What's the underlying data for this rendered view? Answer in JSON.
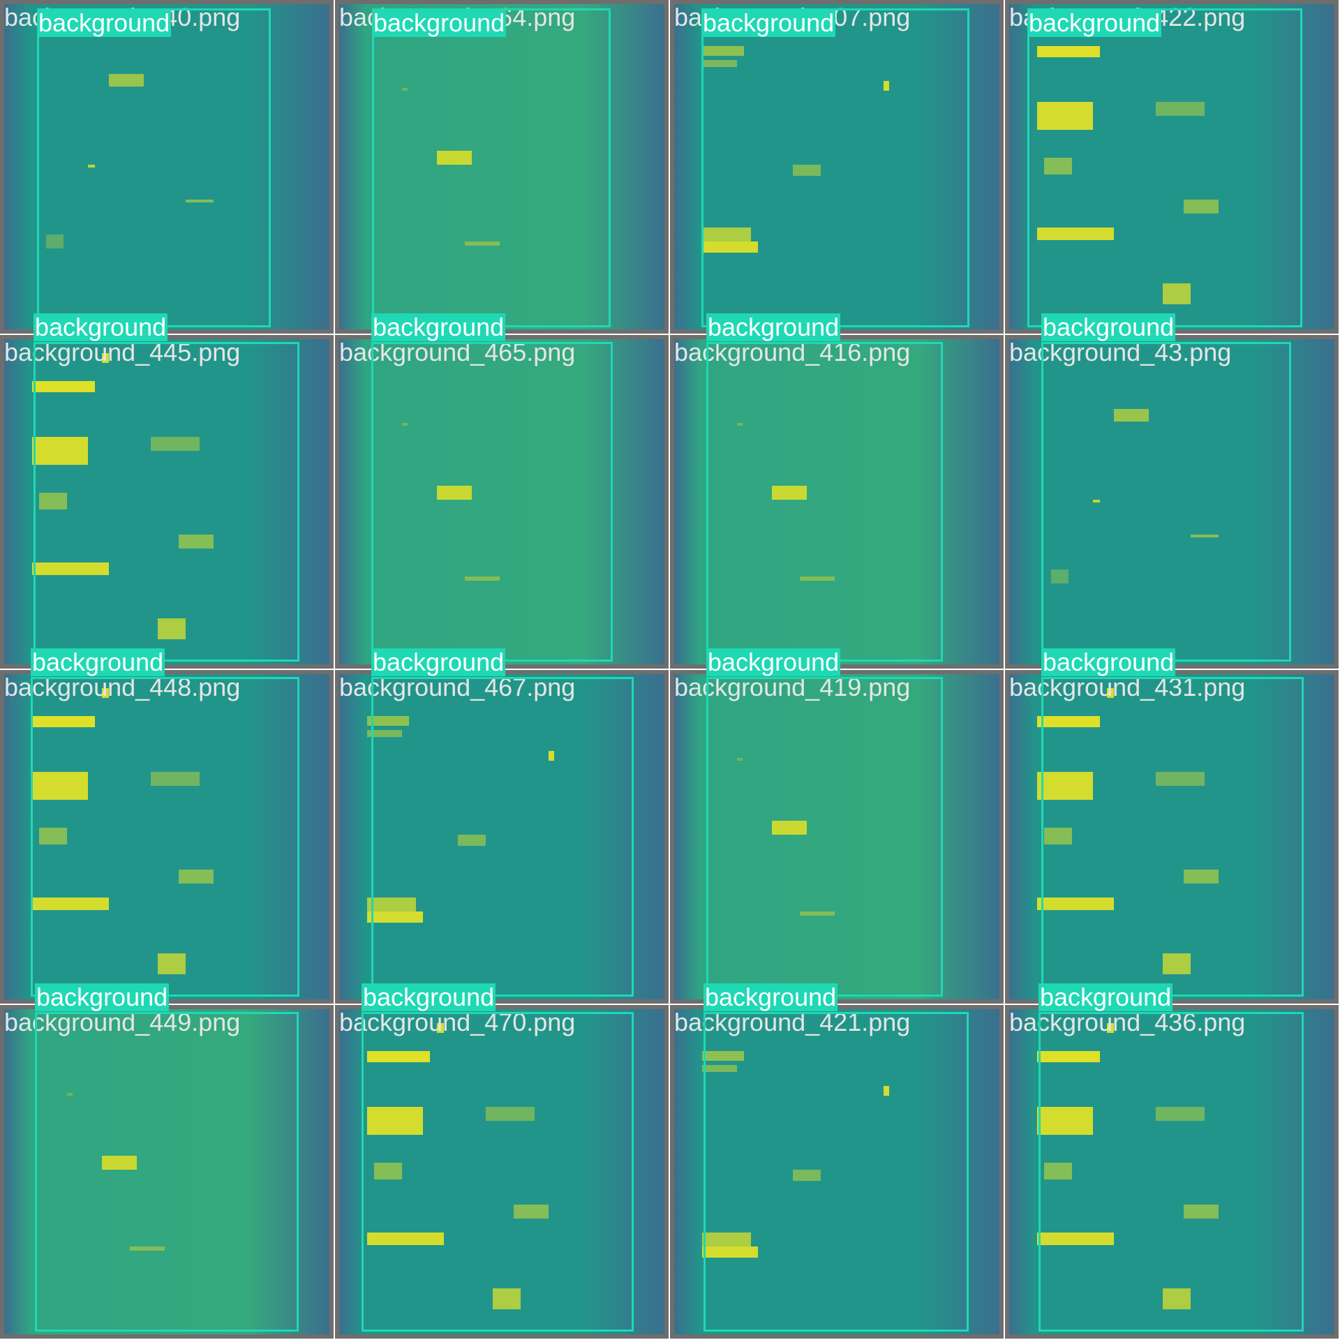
{
  "class_label": "background",
  "colors": {
    "box": "#1fd8b4",
    "tile_border": "#6e6e6e",
    "spectrogram_low": "#3b6f8e",
    "spectrogram_mid": "#22958a",
    "spectrogram_high": "#e8e523"
  },
  "tiles": [
    {
      "filename": "background_440.png",
      "variant": "a"
    },
    {
      "filename": "background_464.png",
      "variant": "b"
    },
    {
      "filename": "background_407.png",
      "variant": "c"
    },
    {
      "filename": "background_422.png",
      "variant": "d"
    },
    {
      "filename": "background_445.png",
      "variant": "d"
    },
    {
      "filename": "background_465.png",
      "variant": "b"
    },
    {
      "filename": "background_416.png",
      "variant": "b"
    },
    {
      "filename": "background_43.png",
      "variant": "a"
    },
    {
      "filename": "background_448.png",
      "variant": "d"
    },
    {
      "filename": "background_467.png",
      "variant": "c"
    },
    {
      "filename": "background_419.png",
      "variant": "b"
    },
    {
      "filename": "background_431.png",
      "variant": "d"
    },
    {
      "filename": "background_449.png",
      "variant": "b"
    },
    {
      "filename": "background_470.png",
      "variant": "d"
    },
    {
      "filename": "background_421.png",
      "variant": "c"
    },
    {
      "filename": "background_436.png",
      "variant": "d"
    }
  ]
}
